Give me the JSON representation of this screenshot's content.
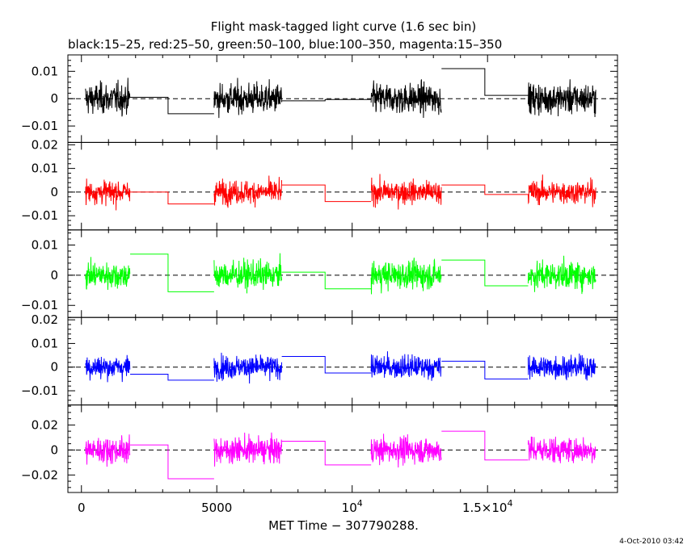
{
  "title": "Flight mask-tagged light curve (1.6 sec bin)",
  "subtitle": "black:15–25, red:25–50, green:50–100, blue:100–350, magenta:15–350",
  "xlabel": "MET Time − 307790288.",
  "timestamp": "4-Oct-2010 03:42",
  "chart_data": {
    "type": "line",
    "xlim": [
      -500,
      19800
    ],
    "x_ticks": [
      {
        "value": 0,
        "label": "0"
      },
      {
        "value": 5000,
        "label": "5000"
      },
      {
        "value": 10000,
        "label": "10",
        "exp": "4"
      },
      {
        "value": 15000,
        "label": "1.5×10",
        "exp": "4"
      }
    ],
    "data_intervals": [
      [
        150,
        1800
      ],
      [
        4900,
        7400
      ],
      [
        10700,
        13300
      ],
      [
        16500,
        19000
      ]
    ],
    "panels": [
      {
        "name": "black:15–25",
        "color": "#000000",
        "ylim": [
          -0.016,
          0.016
        ],
        "y_ticks": [
          {
            "value": 0.01,
            "label": "0.01"
          },
          {
            "value": 0,
            "label": "0"
          },
          {
            "value": -0.01,
            "label": "−0.01"
          }
        ],
        "noise": 0.0085,
        "gap_steps": [
          [
            1800,
            3200,
            0.0005
          ],
          [
            3200,
            4900,
            -0.0055
          ],
          [
            7400,
            9000,
            -0.0008
          ],
          [
            9000,
            10700,
            -0.0003
          ],
          [
            13300,
            14900,
            0.011
          ],
          [
            14900,
            16500,
            0.0012
          ]
        ]
      },
      {
        "name": "red:25–50",
        "color": "#ff0000",
        "ylim": [
          -0.016,
          0.021
        ],
        "y_ticks": [
          {
            "value": 0.02,
            "label": "0.02"
          },
          {
            "value": 0.01,
            "label": "0.01"
          },
          {
            "value": 0,
            "label": "0"
          },
          {
            "value": -0.01,
            "label": "−0.01"
          }
        ],
        "noise": 0.0075,
        "gap_steps": [
          [
            1800,
            3200,
            0.0
          ],
          [
            3200,
            4900,
            -0.005
          ],
          [
            7400,
            9000,
            0.003
          ],
          [
            9000,
            10700,
            -0.004
          ],
          [
            13300,
            14900,
            0.003
          ],
          [
            14900,
            16500,
            -0.001
          ]
        ]
      },
      {
        "name": "green:50–100",
        "color": "#00ff00",
        "ylim": [
          -0.014,
          0.015
        ],
        "y_ticks": [
          {
            "value": 0.01,
            "label": "0.01"
          },
          {
            "value": 0,
            "label": "0"
          },
          {
            "value": -0.01,
            "label": "−0.01"
          }
        ],
        "noise": 0.007,
        "gap_steps": [
          [
            1800,
            3200,
            0.007
          ],
          [
            3200,
            4900,
            -0.0055
          ],
          [
            7400,
            9000,
            0.001
          ],
          [
            9000,
            10700,
            -0.0045
          ],
          [
            13300,
            14900,
            0.005
          ],
          [
            14900,
            16500,
            -0.0035
          ]
        ]
      },
      {
        "name": "blue:100–350",
        "color": "#0000ff",
        "ylim": [
          -0.016,
          0.021
        ],
        "y_ticks": [
          {
            "value": 0.02,
            "label": "0.02"
          },
          {
            "value": 0.01,
            "label": "0.01"
          },
          {
            "value": 0,
            "label": "0"
          },
          {
            "value": -0.01,
            "label": "−0.01"
          }
        ],
        "noise": 0.0075,
        "gap_steps": [
          [
            1800,
            3200,
            -0.003
          ],
          [
            3200,
            4900,
            -0.0055
          ],
          [
            7400,
            9000,
            0.0045
          ],
          [
            9000,
            10700,
            -0.0025
          ],
          [
            13300,
            14900,
            0.0025
          ],
          [
            14900,
            16500,
            -0.005
          ]
        ]
      },
      {
        "name": "magenta:15–350",
        "color": "#ff00ff",
        "ylim": [
          -0.034,
          0.036
        ],
        "y_ticks": [
          {
            "value": 0.02,
            "label": "0.02"
          },
          {
            "value": 0,
            "label": "0"
          },
          {
            "value": -0.02,
            "label": "−0.02"
          }
        ],
        "noise": 0.016,
        "gap_steps": [
          [
            1800,
            3200,
            0.004
          ],
          [
            3200,
            4900,
            -0.023
          ],
          [
            7400,
            9000,
            0.007
          ],
          [
            9000,
            10700,
            -0.012
          ],
          [
            13300,
            14900,
            0.015
          ],
          [
            14900,
            16500,
            -0.008
          ]
        ]
      }
    ]
  }
}
